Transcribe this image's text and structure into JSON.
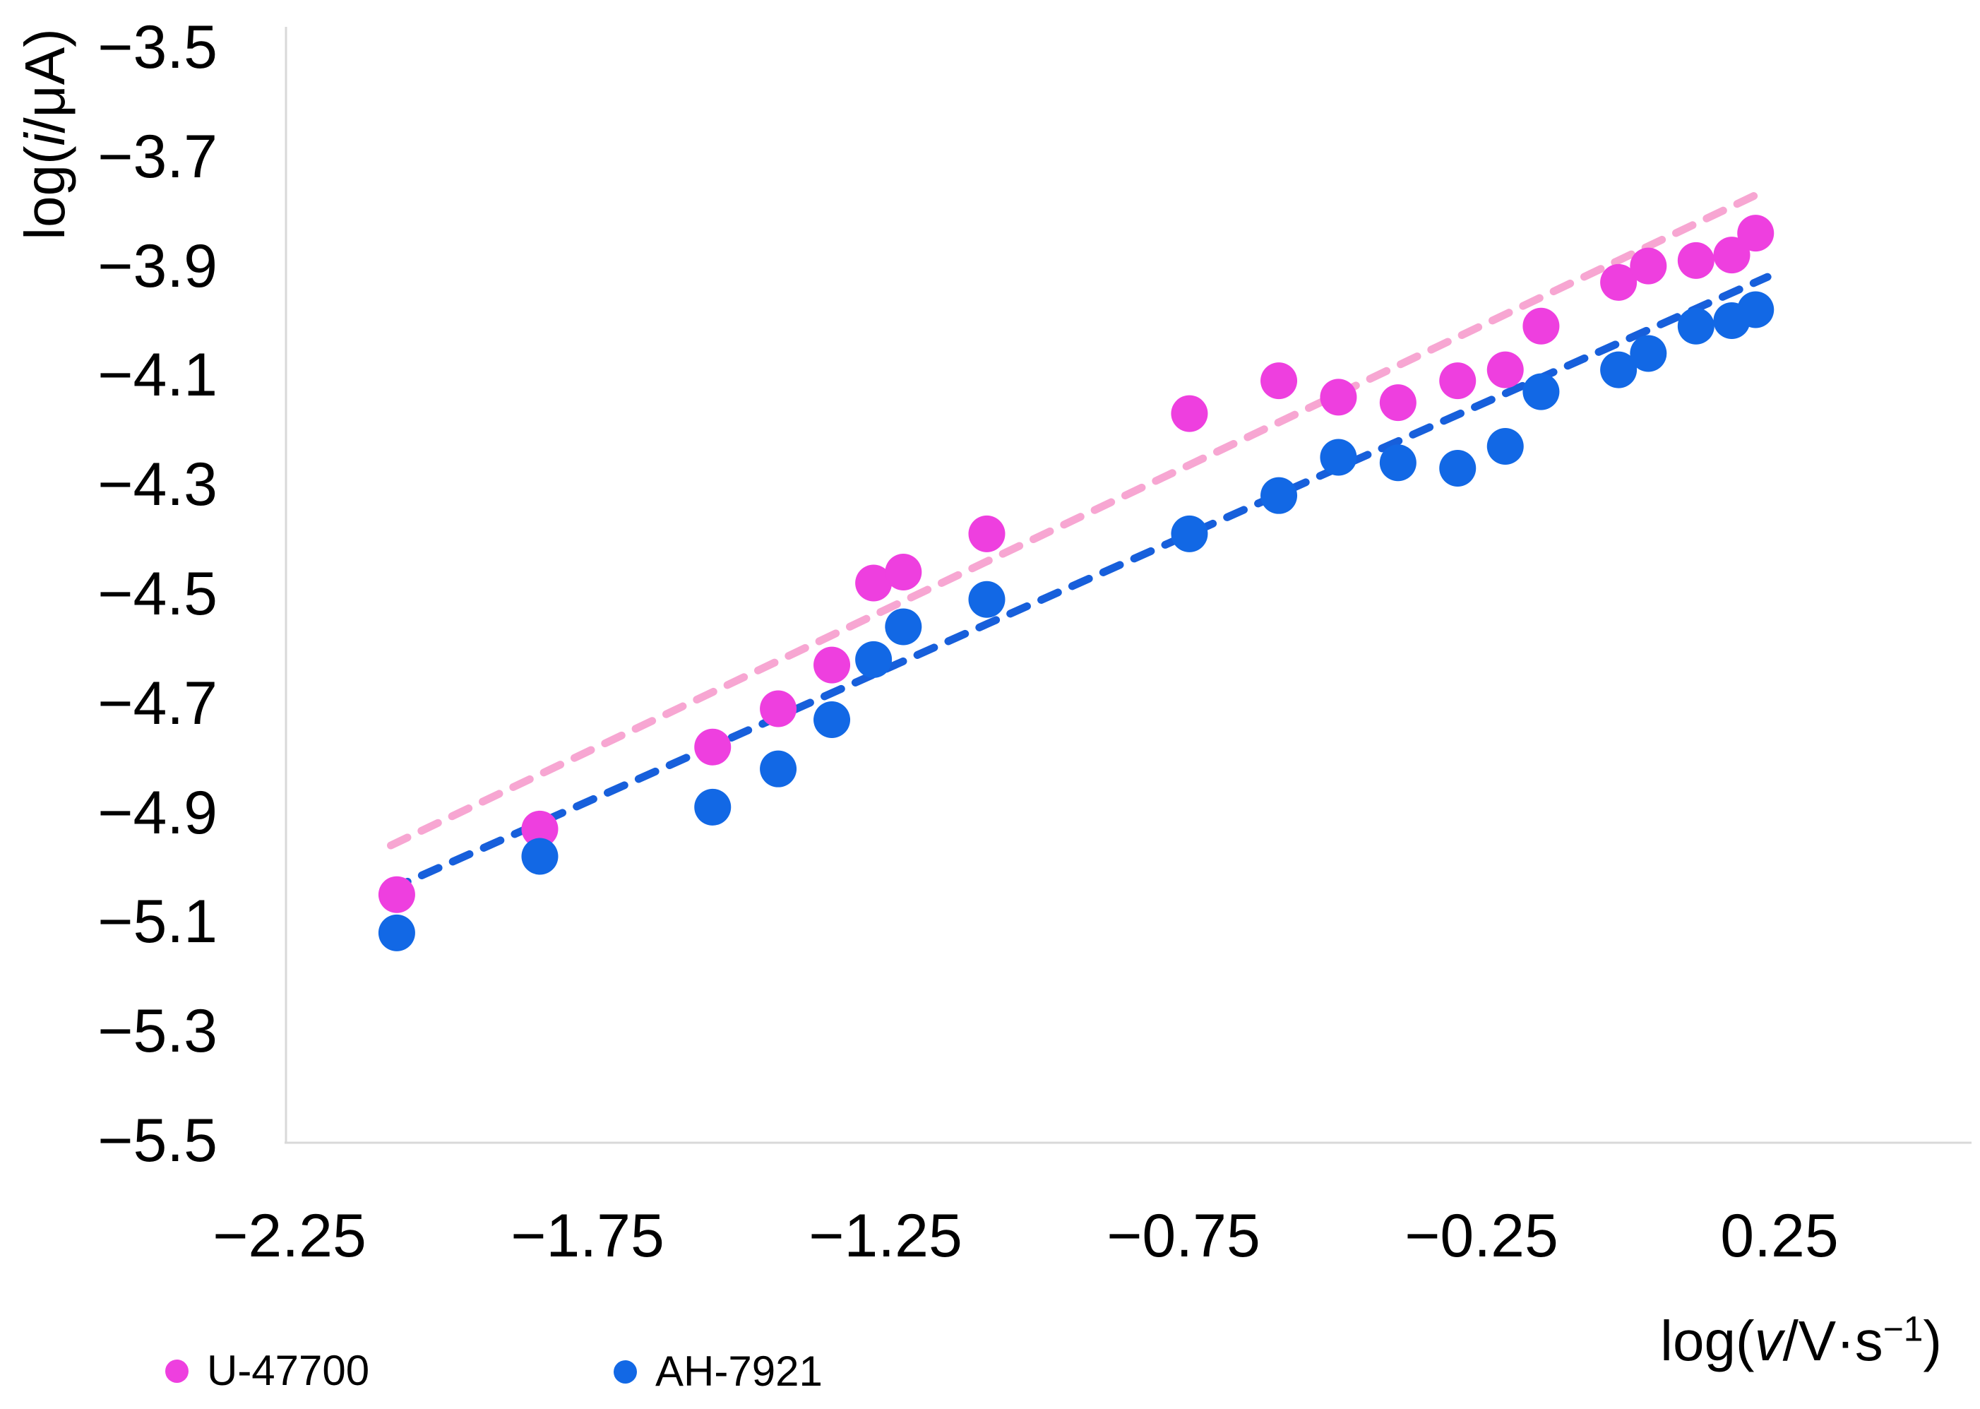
{
  "figure": {
    "background": "#ffffff"
  },
  "axes": {
    "axis_line_color": "#d9d9d9",
    "y_title_parts": {
      "prefix": "log(",
      "var": "i",
      "suffix": "/μA)"
    },
    "x_title_parts": {
      "prefix": "log(",
      "var": "v",
      "mid": "/V·s",
      "sup": "−1",
      "suffix": ")"
    },
    "x_ticks": [
      {
        "v": -2.25,
        "label": "−2.25"
      },
      {
        "v": -1.75,
        "label": "−1.75"
      },
      {
        "v": -1.25,
        "label": "−1.25"
      },
      {
        "v": -0.75,
        "label": "−0.75"
      },
      {
        "v": -0.25,
        "label": "−0.25"
      },
      {
        "v": 0.25,
        "label": "0.25"
      }
    ],
    "y_ticks": [
      {
        "v": -3.5,
        "label": "−3.5"
      },
      {
        "v": -3.7,
        "label": "−3.7"
      },
      {
        "v": -3.9,
        "label": "−3.9"
      },
      {
        "v": -4.1,
        "label": "−4.1"
      },
      {
        "v": -4.3,
        "label": "−4.3"
      },
      {
        "v": -4.5,
        "label": "−4.5"
      },
      {
        "v": -4.7,
        "label": "−4.7"
      },
      {
        "v": -4.9,
        "label": "−4.9"
      },
      {
        "v": -5.1,
        "label": "−5.1"
      },
      {
        "v": -5.3,
        "label": "−5.3"
      },
      {
        "v": -5.5,
        "label": "−5.5"
      }
    ]
  },
  "chart_data": {
    "type": "scatter",
    "xlabel": "log(v/V·s⁻¹)",
    "ylabel": "log(i/μA)",
    "xlim": [
      -2.26,
      0.57
    ],
    "ylim": [
      -5.5,
      -3.46
    ],
    "grid": false,
    "legend_position": "bottom-left",
    "marker_radius": 26,
    "x": [
      -2.07,
      -1.83,
      -1.54,
      -1.43,
      -1.34,
      -1.27,
      -1.22,
      -1.08,
      -0.74,
      -0.59,
      -0.49,
      -0.39,
      -0.29,
      -0.21,
      -0.15,
      -0.02,
      0.03,
      0.11,
      0.17,
      0.21
    ],
    "series": [
      {
        "name": "U-47700",
        "color": "#ee3fdf",
        "y": [
          -5.05,
          -4.93,
          -4.78,
          -4.71,
          -4.63,
          -4.48,
          -4.46,
          -4.39,
          -4.17,
          -4.11,
          -4.14,
          -4.15,
          -4.11,
          -4.09,
          -4.01,
          -3.93,
          -3.9,
          -3.89,
          -3.88,
          -3.84
        ],
        "trendline": {
          "color": "#f7a6d2",
          "from": [
            -2.08,
            -4.96
          ],
          "to": [
            0.23,
            -3.76
          ]
        }
      },
      {
        "name": "AH-7921",
        "color": "#1268e5",
        "y": [
          -5.12,
          -4.98,
          -4.89,
          -4.82,
          -4.73,
          -4.62,
          -4.56,
          -4.51,
          -4.39,
          -4.32,
          -4.25,
          -4.26,
          -4.27,
          -4.23,
          -4.13,
          -4.09,
          -4.06,
          -4.01,
          -4.0,
          -3.98
        ],
        "trendline": {
          "color": "#175fdb",
          "from": [
            -2.08,
            -5.04
          ],
          "to": [
            0.23,
            -3.92
          ]
        }
      }
    ]
  },
  "legend": [
    {
      "label": "U-47700"
    },
    {
      "label": "AH-7921"
    }
  ]
}
